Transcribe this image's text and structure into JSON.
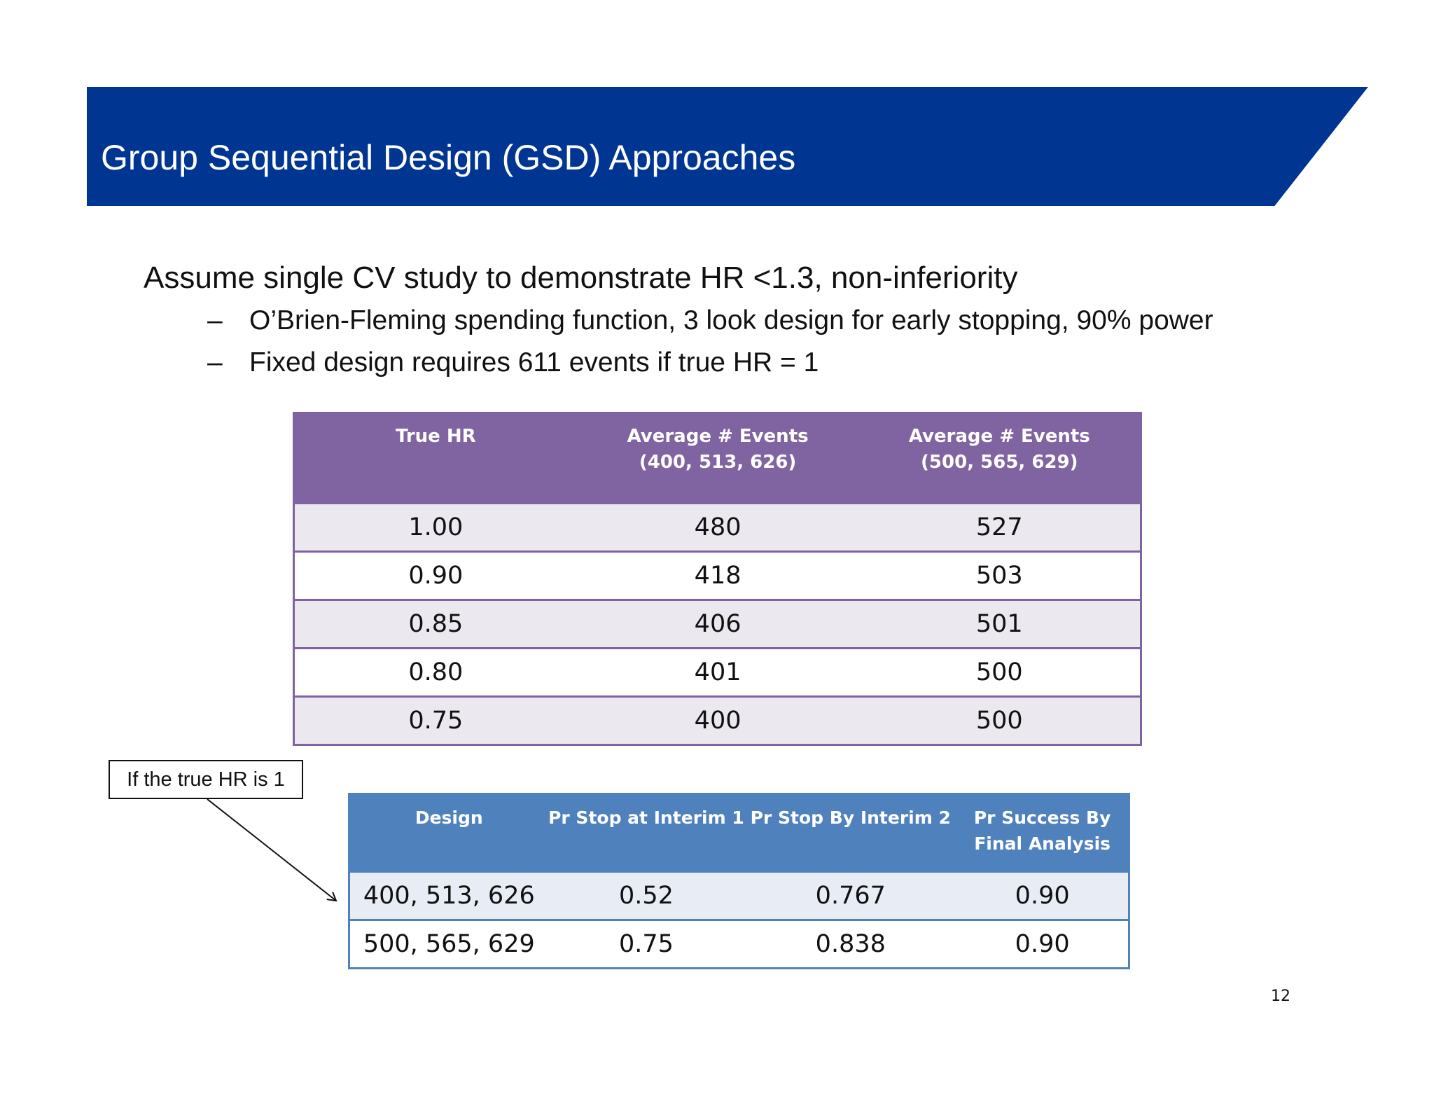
{
  "title": "Group Sequential Design (GSD) Approaches",
  "bullets": {
    "main": "Assume single CV study to demonstrate HR <1.3, non-inferiority",
    "dash": "–",
    "sub": [
      "O’Brien-Fleming spending function, 3 look design for early stopping, 90% power",
      "Fixed design requires 611 events if true HR = 1"
    ]
  },
  "events_table": {
    "headers": [
      {
        "line1": "True HR",
        "line2": ""
      },
      {
        "line1": "Average # Events",
        "line2": "(400, 513, 626)"
      },
      {
        "line1": "Average # Events",
        "line2": "(500, 565, 629)"
      }
    ],
    "rows": [
      [
        "1.00",
        "480",
        "527"
      ],
      [
        "0.90",
        "418",
        "503"
      ],
      [
        "0.85",
        "406",
        "501"
      ],
      [
        "0.80",
        "401",
        "500"
      ],
      [
        "0.75",
        "400",
        "500"
      ]
    ]
  },
  "callout": "If the true HR is 1",
  "stop_table": {
    "headers": [
      {
        "line1": "Design",
        "line2": ""
      },
      {
        "line1": "Pr Stop at Interim 1",
        "line2": ""
      },
      {
        "line1": "Pr Stop By Interim 2",
        "line2": ""
      },
      {
        "line1": "Pr Success  By",
        "line2": "Final Analysis"
      }
    ],
    "rows": [
      [
        "400, 513, 626",
        "0.52",
        "0.767",
        "0.90"
      ],
      [
        "500, 565, 629",
        "0.75",
        "0.838",
        "0.90"
      ]
    ]
  },
  "page_number": "12",
  "colors": {
    "header_band": "#003591",
    "events_table_header": "#8064a2",
    "stop_table_header": "#4f81bd"
  }
}
